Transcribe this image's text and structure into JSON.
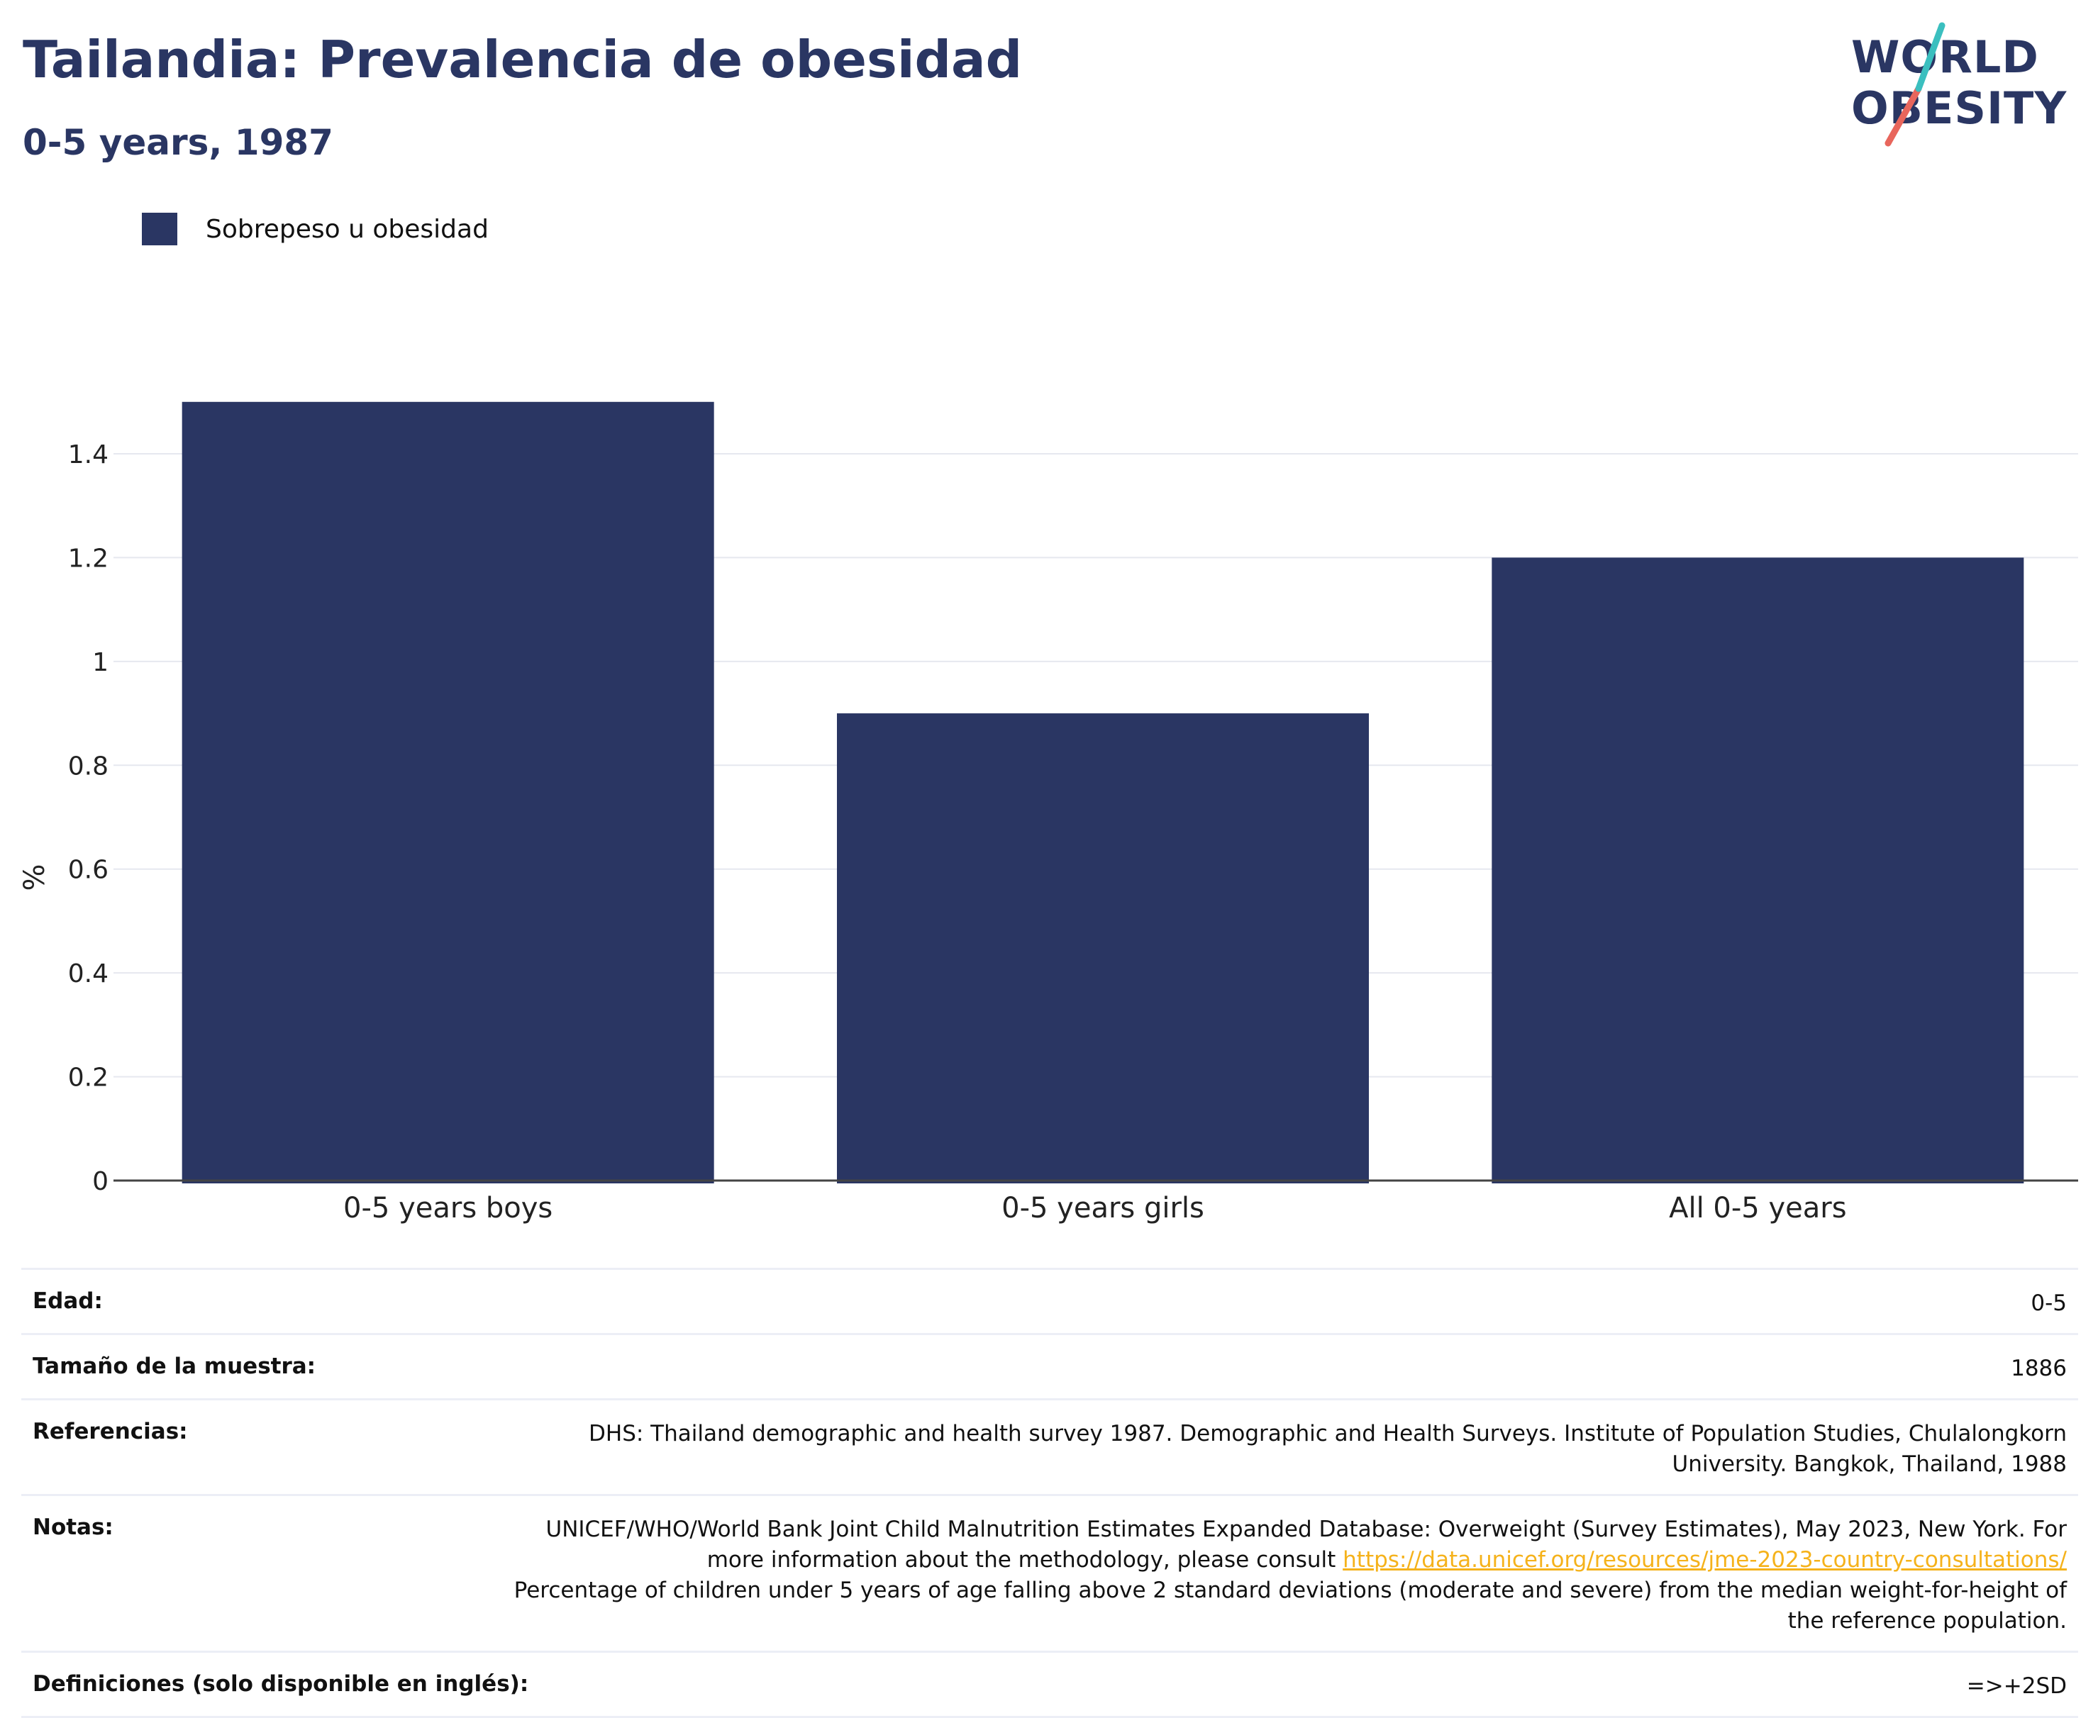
{
  "title": "Tailandia: Prevalencia de obesidad",
  "subtitle": "0-5 years, 1987",
  "logo": {
    "line1": "WORLD",
    "line2": "OBESITY",
    "colors": {
      "navy": "#2a3663",
      "teal": "#3bbfbf",
      "coral": "#e8665c"
    }
  },
  "legend": {
    "label": "Sobrepeso u obesidad",
    "color": "#2a3663"
  },
  "chart_data": {
    "type": "bar",
    "categories": [
      "0-5 years boys",
      "0-5 years girls",
      "All 0-5 years"
    ],
    "series": [
      {
        "name": "Sobrepeso u obesidad",
        "values": [
          1.5,
          0.9,
          1.2
        ],
        "color": "#2a3663"
      }
    ],
    "ylabel": "%",
    "xlabel": "",
    "ylim": [
      0,
      1.55
    ],
    "yticks": [
      0,
      0.2,
      0.4,
      0.6,
      0.8,
      1,
      1.2,
      1.4
    ],
    "ytick_labels": [
      "0",
      "0.2",
      "0.4",
      "0.6",
      "0.8",
      "1",
      "1.2",
      "1.4"
    ],
    "grid": true,
    "legend_position": "top-left"
  },
  "info": {
    "edad": {
      "label": "Edad:",
      "value": "0-5"
    },
    "muestra": {
      "label": "Tamaño de la muestra:",
      "value": "1886"
    },
    "referencias": {
      "label": "Referencias:",
      "value": "DHS: Thailand demographic and health survey 1987. Demographic and Health Surveys. Institute of Population Studies, Chulalongkorn University. Bangkok, Thailand, 1988"
    },
    "notas": {
      "label": "Notas:",
      "text_before": "UNICEF/WHO/World Bank Joint Child Malnutrition Estimates Expanded Database: Overweight (Survey Estimates), May 2023, New York. For more information about the methodology, please consult ",
      "link": "https://data.unicef.org/resources/jme-2023-country-consultations/",
      "text_after": "Percentage of children under 5 years of age falling above 2 standard deviations (moderate and severe) from the median weight-for-height of the reference population."
    },
    "definiciones": {
      "label": "Definiciones (solo disponible en inglés):",
      "value": "=>+2SD"
    }
  }
}
